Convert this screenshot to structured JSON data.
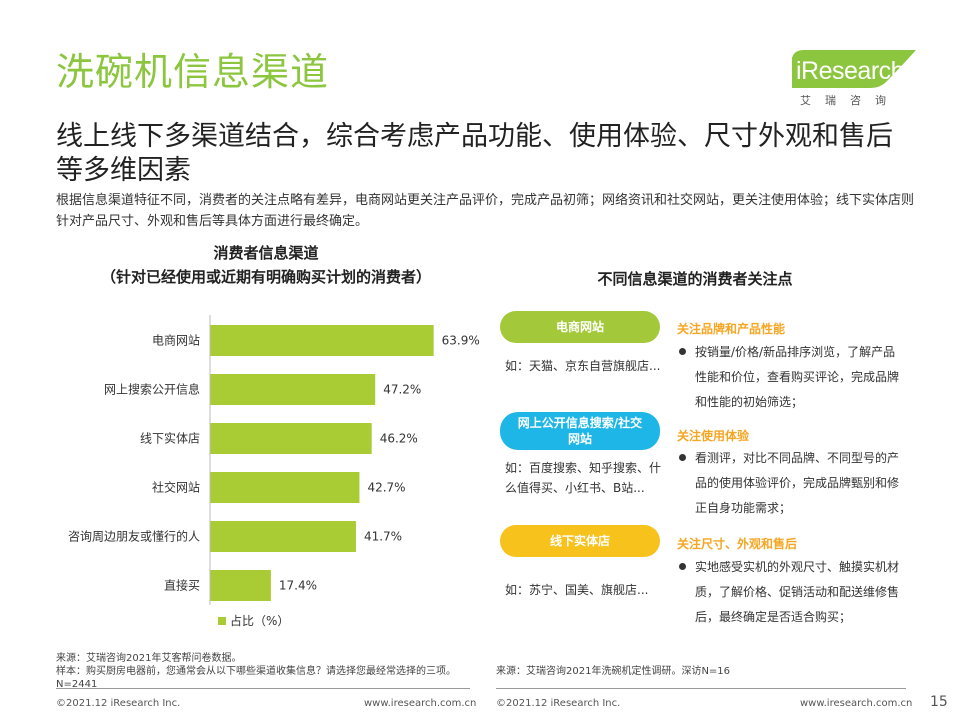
{
  "title": "洗碗机信息渠道",
  "logo": {
    "word": "iResearch",
    "cn": "艾瑞咨询",
    "color": "#8cc63f"
  },
  "headline": "线上线下多渠道结合，综合考虑产品功能、使用体验、尺寸外观和售后等多维因素",
  "intro": "根据信息渠道特征不同，消费者的关注点略有差异，电商网站更关注产品评价，完成产品初筛；网络资讯和社交网站，更关注使用体验；线下实体店则针对产品尺寸、外观和售后等具体方面进行最终确定。",
  "left_chart": {
    "title_line1": "消费者信息渠道",
    "title_line2": "（针对已经使用或近期有明确购买计划的消费者）"
  },
  "chart_data": {
    "type": "bar",
    "orientation": "horizontal",
    "categories": [
      "电商网站",
      "网上搜索公开信息",
      "线下实体店",
      "社交网站",
      "咨询周边朋友或懂行的人",
      "直接买"
    ],
    "series": [
      {
        "name": "占比（%）",
        "values": [
          63.9,
          47.2,
          46.2,
          42.7,
          41.7,
          17.4
        ]
      }
    ],
    "value_labels": [
      "63.9%",
      "47.2%",
      "46.2%",
      "42.7%",
      "41.7%",
      "17.4%"
    ],
    "xlim": [
      0,
      70
    ],
    "grid": false,
    "legend": "bottom-left",
    "color": "#a9cc35"
  },
  "right_panel": {
    "title": "不同信息渠道的消费者关注点",
    "channels": [
      {
        "label": "电商网站",
        "color": "#a3c93a",
        "desc": "如：天猫、京东自营旗舰店...",
        "focus_title": "关注品牌和产品性能",
        "points": [
          "按销量/价格/新品排序浏览，了解产品性能和价位，查看购买评论，完成品牌和性能的初始筛选；"
        ]
      },
      {
        "label": "网上公开信息搜索/社交网站",
        "color": "#1eb6e6",
        "desc": "如：百度搜索、知乎搜索、什么值得买、小红书、B站...",
        "focus_title": "关注使用体验",
        "points": [
          "看测评，对比不同品牌、不同型号的产品的使用体验评价，完成品牌甄别和修正自身功能需求；"
        ]
      },
      {
        "label": "线下实体店",
        "color": "#f7c21b",
        "desc": "如：苏宁、国美、旗舰店...",
        "focus_title": "关注尺寸、外观和售后",
        "points": [
          "实地感受实机的外观尺寸、触摸实机材质，了解价格、促销活动和配送维修售后，最终确定是否适合购买；"
        ]
      }
    ],
    "focus_title_color": "#f5a623"
  },
  "sources": {
    "left": "来源：艾瑞咨询2021年艾客帮问卷数据。\n样本：购买厨房电器前，您通常会从以下哪些渠道收集信息？请选择您最经常选择的三项。N=2441",
    "right": "来源：艾瑞咨询2021年洗碗机定性调研。深访N=16"
  },
  "footer": {
    "left_copyright": "©2021.12 iResearch Inc.",
    "left_url": "www.iresearch.com.cn",
    "right_copyright": "©2021.12 iResearch Inc.",
    "right_url": "www.iresearch.com.cn",
    "page_number": "15"
  }
}
